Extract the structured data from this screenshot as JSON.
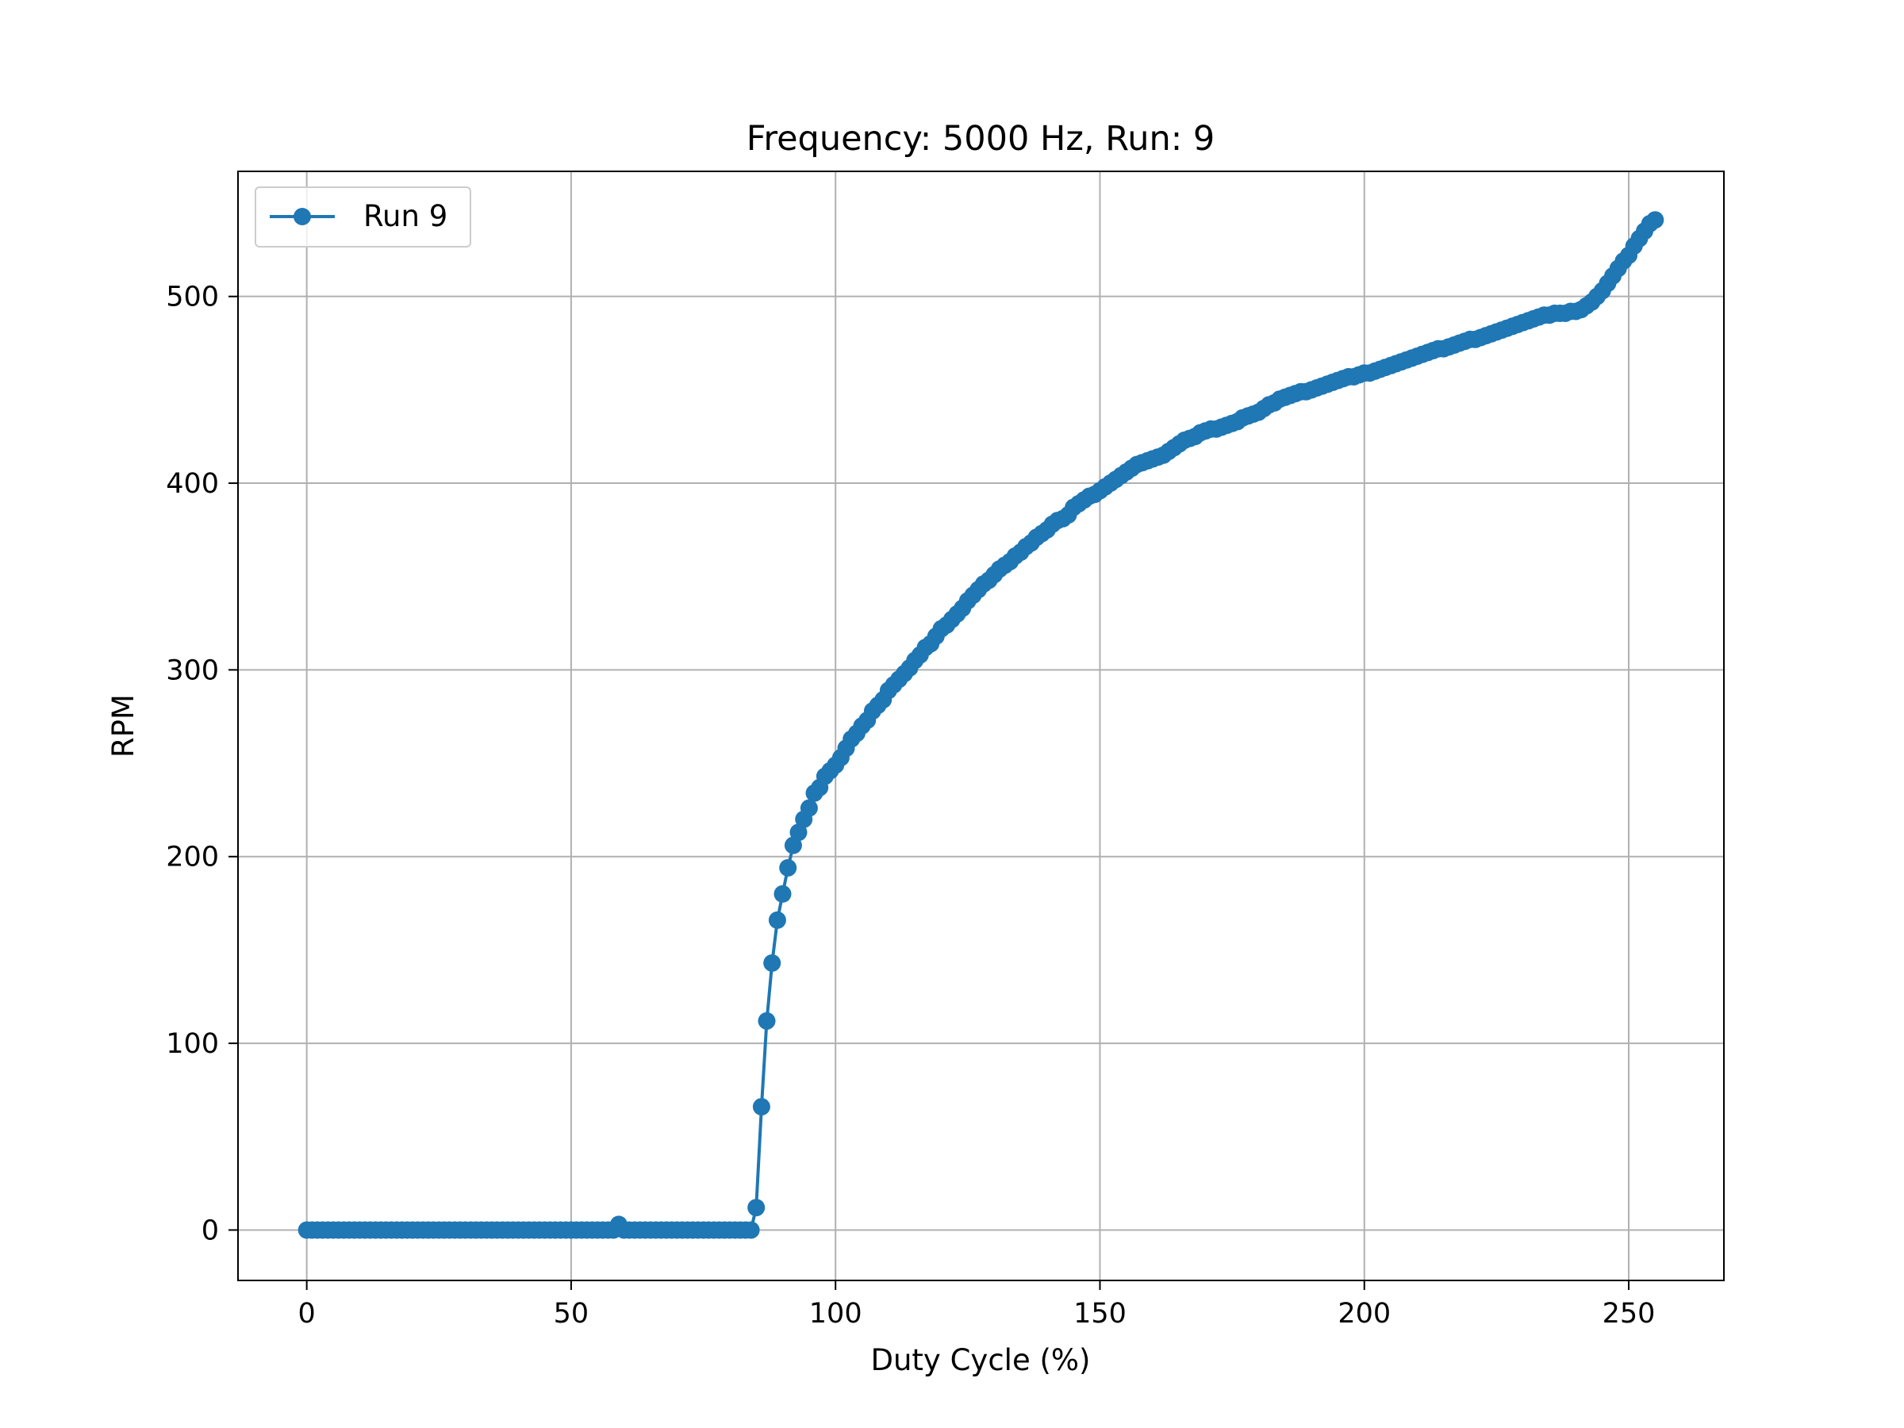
{
  "chart_data": {
    "type": "line",
    "title": "Frequency: 5000 Hz, Run: 9",
    "xlabel": "Duty Cycle (%)",
    "ylabel": "RPM",
    "xlim": [
      -13,
      268
    ],
    "ylim": [
      -27,
      567
    ],
    "xticks": [
      0,
      50,
      100,
      150,
      200,
      250
    ],
    "yticks": [
      0,
      100,
      200,
      300,
      400,
      500
    ],
    "grid": true,
    "legend": "upper left",
    "color": "#1f77b4",
    "series": [
      {
        "name": "Run 9",
        "x": [
          0,
          1,
          2,
          3,
          4,
          5,
          6,
          7,
          8,
          9,
          10,
          11,
          12,
          13,
          14,
          15,
          16,
          17,
          18,
          19,
          20,
          21,
          22,
          23,
          24,
          25,
          26,
          27,
          28,
          29,
          30,
          31,
          32,
          33,
          34,
          35,
          36,
          37,
          38,
          39,
          40,
          41,
          42,
          43,
          44,
          45,
          46,
          47,
          48,
          49,
          50,
          51,
          52,
          53,
          54,
          55,
          56,
          57,
          58,
          59,
          60,
          61,
          62,
          63,
          64,
          65,
          66,
          67,
          68,
          69,
          70,
          71,
          72,
          73,
          74,
          75,
          76,
          77,
          78,
          79,
          80,
          81,
          82,
          83,
          84,
          85,
          86,
          87,
          88,
          89,
          90,
          91,
          92,
          93,
          94,
          95,
          96,
          97,
          98,
          99,
          100,
          101,
          102,
          103,
          104,
          105,
          106,
          107,
          108,
          109,
          110,
          111,
          112,
          113,
          114,
          115,
          116,
          117,
          118,
          119,
          120,
          121,
          122,
          123,
          124,
          125,
          126,
          127,
          128,
          129,
          130,
          131,
          132,
          133,
          134,
          135,
          136,
          137,
          138,
          139,
          140,
          141,
          142,
          143,
          144,
          145,
          146,
          147,
          148,
          149,
          150,
          151,
          152,
          153,
          154,
          155,
          156,
          157,
          158,
          159,
          160,
          161,
          162,
          163,
          164,
          165,
          166,
          167,
          168,
          169,
          170,
          171,
          172,
          173,
          174,
          175,
          176,
          177,
          178,
          179,
          180,
          181,
          182,
          183,
          184,
          185,
          186,
          187,
          188,
          189,
          190,
          191,
          192,
          193,
          194,
          195,
          196,
          197,
          198,
          199,
          200,
          201,
          202,
          203,
          204,
          205,
          206,
          207,
          208,
          209,
          210,
          211,
          212,
          213,
          214,
          215,
          216,
          217,
          218,
          219,
          220,
          221,
          222,
          223,
          224,
          225,
          226,
          227,
          228,
          229,
          230,
          231,
          232,
          233,
          234,
          235,
          236,
          237,
          238,
          239,
          240,
          241,
          242,
          243,
          244,
          245,
          246,
          247,
          248,
          249,
          250,
          251,
          252,
          253,
          254,
          255
        ],
        "y": [
          0,
          0,
          0,
          0,
          0,
          0,
          0,
          0,
          0,
          0,
          0,
          0,
          0,
          0,
          0,
          0,
          0,
          0,
          0,
          0,
          0,
          0,
          0,
          0,
          0,
          0,
          0,
          0,
          0,
          0,
          0,
          0,
          0,
          0,
          0,
          0,
          0,
          0,
          0,
          0,
          0,
          0,
          0,
          0,
          0,
          0,
          0,
          0,
          0,
          0,
          0,
          0,
          0,
          0,
          0,
          0,
          0,
          0,
          0,
          3,
          0,
          0,
          0,
          0,
          0,
          0,
          0,
          0,
          0,
          0,
          0,
          0,
          0,
          0,
          0,
          0,
          0,
          0,
          0,
          0,
          0,
          0,
          0,
          0,
          0,
          12,
          66,
          112,
          143,
          166,
          180,
          194,
          206,
          213,
          220,
          226,
          234,
          237,
          243,
          246,
          249,
          253,
          258,
          263,
          266,
          270,
          273,
          278,
          281,
          284,
          289,
          292,
          295,
          298,
          301,
          305,
          308,
          312,
          314,
          318,
          322,
          324,
          327,
          330,
          333,
          337,
          340,
          343,
          346,
          348,
          351,
          354,
          356,
          358,
          361,
          363,
          366,
          368,
          371,
          373,
          375,
          378,
          380,
          381,
          383,
          387,
          389,
          391,
          393,
          394,
          396,
          398,
          400,
          402,
          404,
          406,
          408,
          410,
          411,
          412,
          413,
          414,
          415,
          417,
          419,
          421,
          423,
          424,
          425,
          427,
          428,
          429,
          429,
          430,
          431,
          432,
          433,
          435,
          436,
          437,
          438,
          440,
          442,
          443,
          445,
          446,
          447,
          448,
          449,
          449,
          450,
          451,
          452,
          453,
          454,
          455,
          456,
          457,
          457,
          458,
          459,
          459,
          460,
          461,
          462,
          463,
          464,
          465,
          466,
          467,
          468,
          469,
          470,
          471,
          472,
          472,
          473,
          474,
          475,
          476,
          477,
          477,
          478,
          479,
          480,
          481,
          482,
          483,
          484,
          485,
          486,
          487,
          488,
          489,
          490,
          490,
          491,
          491,
          491,
          492,
          492,
          493,
          495,
          497,
          500,
          503,
          507,
          511,
          515,
          519,
          522,
          527,
          531,
          535,
          539,
          541
        ]
      }
    ]
  }
}
